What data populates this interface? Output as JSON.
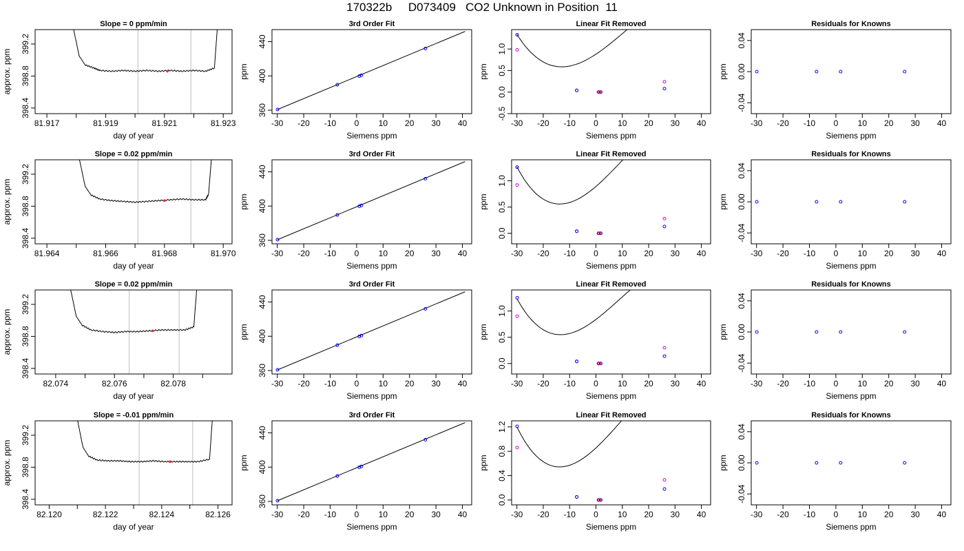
{
  "page": {
    "title": "170322b     D073409   CO2 Unknown in Position  11"
  },
  "colors": {
    "trace": "#000000",
    "frame": "#000000",
    "window_line": "#c8c8c8",
    "point_blue": "#0000ff",
    "point_magenta": "#d400d4",
    "point_red": "#ff2020"
  },
  "chart_data": [
    {
      "type": "line",
      "row": 0,
      "title": "Slope =  0  ppm/min",
      "xlabel": "day of year",
      "ylabel": "approx. ppm",
      "xlim": [
        81.9166,
        81.9233
      ],
      "ylim": [
        398.33,
        399.38
      ],
      "xticks": [
        "81.917",
        "81.919",
        "81.921",
        "81.923"
      ],
      "xminor": [
        81.918,
        81.92,
        81.922
      ],
      "yticks": [
        "398.4",
        "398.8",
        "399.2"
      ],
      "window_lines": [
        81.9201,
        81.9219
      ],
      "trace": {
        "x": [
          81.9179,
          81.9181,
          81.9183,
          81.9186,
          81.9188,
          81.9192,
          81.9196,
          81.92,
          81.9204,
          81.9208,
          81.9212,
          81.9216,
          81.922,
          81.9224,
          81.9227,
          81.9228
        ],
        "y": [
          399.4,
          399.05,
          398.94,
          398.9,
          398.87,
          398.86,
          398.87,
          398.86,
          398.87,
          398.86,
          398.87,
          398.86,
          398.87,
          398.86,
          398.9,
          399.4
        ]
      },
      "marker": {
        "x": 81.9211,
        "y": 398.86
      }
    },
    {
      "type": "line",
      "row": 1,
      "title": "Slope =  0.02  ppm/min",
      "xlabel": "day of year",
      "ylabel": "approx. ppm",
      "xlim": [
        81.9636,
        81.9703
      ],
      "ylim": [
        398.33,
        399.38
      ],
      "xticks": [
        "81.964",
        "81.966",
        "81.968",
        "81.970"
      ],
      "xminor": [
        81.965,
        81.967,
        81.969
      ],
      "yticks": [
        "398.4",
        "398.8",
        "399.2"
      ],
      "window_lines": [
        81.9671,
        81.9689
      ],
      "trace": {
        "x": [
          81.9651,
          81.9653,
          81.9655,
          81.9658,
          81.9662,
          81.9666,
          81.967,
          81.9674,
          81.9678,
          81.9682,
          81.9686,
          81.969,
          81.9694,
          81.9695,
          81.9696
        ],
        "y": [
          399.4,
          399.05,
          398.94,
          398.89,
          398.87,
          398.86,
          398.85,
          398.86,
          398.87,
          398.88,
          398.89,
          398.88,
          398.88,
          398.95,
          399.4
        ]
      },
      "marker": {
        "x": 81.968,
        "y": 398.87
      }
    },
    {
      "type": "line",
      "row": 2,
      "title": "Slope =  0.02  ppm/min",
      "xlabel": "day of year",
      "ylabel": "approx. ppm",
      "xlim": [
        82.0733,
        82.08
      ],
      "ylim": [
        398.33,
        399.38
      ],
      "xticks": [
        "82.074",
        "82.076",
        "82.078"
      ],
      "xminor": [
        82.075,
        82.077,
        82.079
      ],
      "yticks": [
        "398.4",
        "398.8",
        "399.2"
      ],
      "window_lines": [
        82.0765,
        82.0782
      ],
      "trace": {
        "x": [
          82.0745,
          82.0747,
          82.0749,
          82.0752,
          82.0756,
          82.076,
          82.0764,
          82.0768,
          82.0772,
          82.0776,
          82.078,
          82.0784,
          82.0787,
          82.0788
        ],
        "y": [
          399.4,
          399.05,
          398.94,
          398.88,
          398.86,
          398.85,
          398.86,
          398.86,
          398.87,
          398.88,
          398.88,
          398.88,
          398.92,
          399.4
        ]
      },
      "marker": {
        "x": 82.0773,
        "y": 398.87
      }
    },
    {
      "type": "line",
      "row": 3,
      "title": "Slope =  -0.01  ppm/min",
      "xlabel": "day of year",
      "ylabel": "approx. ppm",
      "xlim": [
        82.1195,
        82.1265
      ],
      "ylim": [
        398.33,
        399.38
      ],
      "xticks": [
        "82.120",
        "82.122",
        "82.124",
        "82.126"
      ],
      "xminor": [
        82.121,
        82.123,
        82.125
      ],
      "yticks": [
        "398.4",
        "398.8",
        "399.2"
      ],
      "window_lines": [
        82.1232,
        82.1251
      ],
      "trace": {
        "x": [
          82.121,
          82.1212,
          82.1214,
          82.1217,
          82.1221,
          82.1225,
          82.1229,
          82.1233,
          82.1237,
          82.1241,
          82.1245,
          82.1249,
          82.1253,
          82.1257,
          82.1258
        ],
        "y": [
          399.4,
          399.05,
          398.94,
          398.89,
          398.88,
          398.88,
          398.87,
          398.87,
          398.88,
          398.87,
          398.87,
          398.87,
          398.87,
          398.9,
          399.4
        ]
      },
      "marker": {
        "x": 82.1243,
        "y": 398.87
      }
    },
    {
      "type": "line",
      "row": 0,
      "title": "3rd Order Fit",
      "xlabel": "Siemens ppm",
      "ylabel": "ppm",
      "xlim": [
        -32,
        43.5
      ],
      "ylim": [
        356,
        454
      ],
      "xticks": [
        "-30",
        "-20",
        "-10",
        "0",
        "10",
        "20",
        "30",
        "40"
      ],
      "yticks": [
        "360",
        "400",
        "440"
      ],
      "line": {
        "x": [
          -30,
          41
        ],
        "y": [
          360.7,
          451.9
        ]
      },
      "points": {
        "x": [
          -29.9,
          -7.3,
          1.0,
          1.8,
          26.0
        ],
        "y": [
          360.8,
          389.7,
          399.8,
          400.8,
          431.9
        ]
      }
    },
    {
      "type": "line",
      "row": 1,
      "title": "3rd Order Fit",
      "xlabel": "Siemens ppm",
      "ylabel": "ppm",
      "xlim": [
        -32,
        43.5
      ],
      "ylim": [
        356,
        454
      ],
      "xticks": [
        "-30",
        "-20",
        "-10",
        "0",
        "10",
        "20",
        "30",
        "40"
      ],
      "yticks": [
        "360",
        "400",
        "440"
      ],
      "line": {
        "x": [
          -30,
          41
        ],
        "y": [
          360.7,
          451.9
        ]
      },
      "points": {
        "x": [
          -29.9,
          -7.3,
          1.0,
          1.8,
          26.0
        ],
        "y": [
          360.8,
          389.7,
          399.8,
          400.8,
          431.9
        ]
      }
    },
    {
      "type": "line",
      "row": 2,
      "title": "3rd Order Fit",
      "xlabel": "Siemens ppm",
      "ylabel": "ppm",
      "xlim": [
        -32,
        43.5
      ],
      "ylim": [
        356,
        454
      ],
      "xticks": [
        "-30",
        "-20",
        "-10",
        "0",
        "10",
        "20",
        "30",
        "40"
      ],
      "yticks": [
        "360",
        "400",
        "440"
      ],
      "line": {
        "x": [
          -30,
          41
        ],
        "y": [
          360.7,
          451.9
        ]
      },
      "points": {
        "x": [
          -29.9,
          -7.3,
          1.0,
          1.8,
          26.0
        ],
        "y": [
          360.8,
          389.7,
          399.8,
          400.8,
          431.9
        ]
      }
    },
    {
      "type": "line",
      "row": 3,
      "title": "3rd Order Fit",
      "xlabel": "Siemens ppm",
      "ylabel": "ppm",
      "xlim": [
        -32,
        43.5
      ],
      "ylim": [
        356,
        454
      ],
      "xticks": [
        "-30",
        "-20",
        "-10",
        "0",
        "10",
        "20",
        "30",
        "40"
      ],
      "yticks": [
        "360",
        "400",
        "440"
      ],
      "line": {
        "x": [
          -30,
          41
        ],
        "y": [
          360.7,
          451.9
        ]
      },
      "points": {
        "x": [
          -29.9,
          -7.3,
          1.0,
          1.8,
          26.0
        ],
        "y": [
          360.8,
          389.7,
          399.8,
          400.8,
          431.9
        ]
      }
    },
    {
      "type": "line",
      "row": 0,
      "title": "Linear Fit Removed",
      "xlabel": "Siemens ppm",
      "ylabel": "ppm",
      "xlim": [
        -32,
        43.5
      ],
      "ylim": [
        -0.5,
        1.45
      ],
      "xticks": [
        "-30",
        "-20",
        "-10",
        "0",
        "10",
        "20",
        "30",
        "40"
      ],
      "yticks": [
        "-0.5",
        "0.0",
        "0.5",
        "1.0"
      ],
      "curve": [
        1.34,
        -0.0969,
        0.00358,
        -2.87e-05,
        -30,
        41
      ],
      "points_blue": {
        "x": [
          -29.9,
          -7.3,
          1.0,
          1.8,
          26.0
        ],
        "y": [
          1.33,
          0.04,
          0.0,
          0.0,
          0.08
        ]
      },
      "points_magenta": {
        "x": [
          -29.9,
          -7.3,
          1.0,
          1.8,
          26.0
        ],
        "y": [
          0.98,
          0.04,
          0.0,
          0.0,
          0.24
        ]
      },
      "points_red": {
        "x": [
          1.4
        ],
        "y": [
          0.0
        ]
      }
    },
    {
      "type": "line",
      "row": 1,
      "title": "Linear Fit Removed",
      "xlabel": "Siemens ppm",
      "ylabel": "ppm",
      "xlim": [
        -32,
        43.5
      ],
      "ylim": [
        -0.2,
        1.4
      ],
      "xticks": [
        "-30",
        "-20",
        "-10",
        "0",
        "10",
        "20",
        "30",
        "40"
      ],
      "yticks": [
        "0.0",
        "0.5",
        "1.0"
      ],
      "curve": [
        1.265,
        -0.0949,
        0.00365,
        -3e-05,
        -30,
        41
      ],
      "points_blue": {
        "x": [
          -29.9,
          -7.3,
          1.0,
          1.8,
          26.0
        ],
        "y": [
          1.26,
          0.04,
          0.0,
          0.0,
          0.13
        ]
      },
      "points_magenta": {
        "x": [
          -29.9,
          -7.3,
          1.0,
          1.8,
          26.0
        ],
        "y": [
          0.92,
          0.04,
          0.0,
          0.0,
          0.28
        ]
      },
      "points_red": {
        "x": [
          1.4
        ],
        "y": [
          0.0
        ]
      }
    },
    {
      "type": "line",
      "row": 2,
      "title": "Linear Fit Removed",
      "xlabel": "Siemens ppm",
      "ylabel": "ppm",
      "xlim": [
        -32,
        43.5
      ],
      "ylim": [
        -0.2,
        1.4
      ],
      "xticks": [
        "-30",
        "-20",
        "-10",
        "0",
        "10",
        "20",
        "30",
        "40"
      ],
      "yticks": [
        "0.0",
        "0.5",
        "1.0"
      ],
      "curve": [
        1.235,
        -0.0912,
        0.0035,
        -3e-05,
        -30,
        41
      ],
      "points_blue": {
        "x": [
          -29.9,
          -7.3,
          1.0,
          1.8,
          26.0
        ],
        "y": [
          1.25,
          0.04,
          0.0,
          0.0,
          0.14
        ]
      },
      "points_magenta": {
        "x": [
          -29.9,
          -7.3,
          1.0,
          1.8,
          26.0
        ],
        "y": [
          0.9,
          0.04,
          0.0,
          0.0,
          0.3
        ]
      },
      "points_red": {
        "x": [
          1.4
        ],
        "y": [
          0.0
        ]
      }
    },
    {
      "type": "line",
      "row": 3,
      "title": "Linear Fit Removed",
      "xlabel": "Siemens ppm",
      "ylabel": "ppm",
      "xlim": [
        -32,
        43.5
      ],
      "ylim": [
        -0.08,
        1.3
      ],
      "xticks": [
        "-30",
        "-20",
        "-10",
        "0",
        "10",
        "20",
        "30",
        "40"
      ],
      "yticks": [
        "0.0",
        "0.4",
        "0.8",
        "1.2"
      ],
      "curve": [
        1.2,
        -0.0884,
        0.00341,
        -2.82e-05,
        -30,
        41
      ],
      "points_blue": {
        "x": [
          -29.9,
          -7.3,
          1.0,
          1.8,
          26.0
        ],
        "y": [
          1.21,
          0.05,
          0.0,
          0.0,
          0.18
        ]
      },
      "points_magenta": {
        "x": [
          -29.9,
          -7.3,
          1.0,
          1.8,
          26.0
        ],
        "y": [
          0.86,
          0.05,
          0.0,
          0.0,
          0.33
        ]
      },
      "points_red": {
        "x": [
          1.4
        ],
        "y": [
          0.0
        ]
      }
    },
    {
      "type": "scatter",
      "row": 0,
      "title": "Residuals for Knowns",
      "xlabel": "Siemens ppm",
      "ylabel": "ppm",
      "xlim": [
        -32,
        43.5
      ],
      "ylim": [
        -0.054,
        0.054
      ],
      "xticks": [
        "-30",
        "-20",
        "-10",
        "0",
        "10",
        "20",
        "30",
        "40"
      ],
      "yticks": [
        "-0.04",
        "0.00",
        "0.04"
      ],
      "points": {
        "x": [
          -29.9,
          -7.3,
          1.8,
          26.0
        ],
        "y": [
          0,
          0,
          0,
          0
        ]
      }
    },
    {
      "type": "scatter",
      "row": 1,
      "title": "Residuals for Knowns",
      "xlabel": "Siemens ppm",
      "ylabel": "ppm",
      "xlim": [
        -32,
        43.5
      ],
      "ylim": [
        -0.054,
        0.054
      ],
      "xticks": [
        "-30",
        "-20",
        "-10",
        "0",
        "10",
        "20",
        "30",
        "40"
      ],
      "yticks": [
        "-0.04",
        "0.00",
        "0.04"
      ],
      "points": {
        "x": [
          -29.9,
          -7.3,
          1.8,
          26.0
        ],
        "y": [
          0,
          0,
          0,
          0
        ]
      }
    },
    {
      "type": "scatter",
      "row": 2,
      "title": "Residuals for Knowns",
      "xlabel": "Siemens ppm",
      "ylabel": "ppm",
      "xlim": [
        -32,
        43.5
      ],
      "ylim": [
        -0.054,
        0.054
      ],
      "xticks": [
        "-30",
        "-20",
        "-10",
        "0",
        "10",
        "20",
        "30",
        "40"
      ],
      "yticks": [
        "-0.04",
        "0.00",
        "0.04"
      ],
      "points": {
        "x": [
          -29.9,
          -7.3,
          1.8,
          26.0
        ],
        "y": [
          0,
          0,
          0,
          0
        ]
      }
    },
    {
      "type": "scatter",
      "row": 3,
      "title": "Residuals for Knowns",
      "xlabel": "Siemens ppm",
      "ylabel": "ppm",
      "xlim": [
        -32,
        43.5
      ],
      "ylim": [
        -0.054,
        0.054
      ],
      "xticks": [
        "-30",
        "-20",
        "-10",
        "0",
        "10",
        "20",
        "30",
        "40"
      ],
      "yticks": [
        "-0.04",
        "0.00",
        "0.04"
      ],
      "points": {
        "x": [
          -29.9,
          -7.3,
          1.8,
          26.0
        ],
        "y": [
          0,
          0,
          0,
          0
        ]
      }
    }
  ]
}
